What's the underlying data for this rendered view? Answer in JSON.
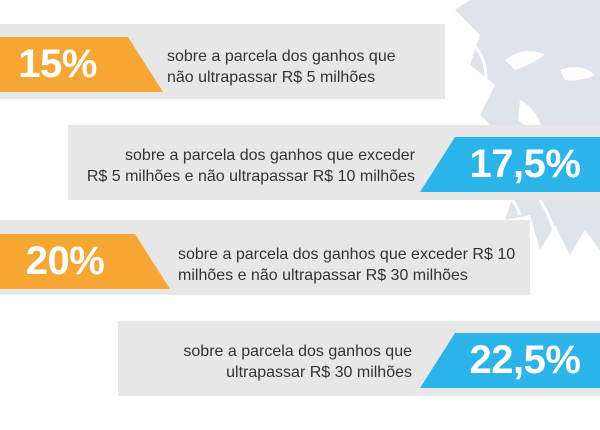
{
  "tiers": [
    {
      "rate": "15%",
      "text_line1": "sobre a parcela dos ganhos que",
      "text_line2": "não ultrapassar R$ 5 milhões",
      "color": "#f6a632"
    },
    {
      "rate": "17,5%",
      "text_line1": "sobre a parcela dos ganhos que exceder",
      "text_line2": "R$ 5 milhões e não ultrapassar R$ 10 milhões",
      "color": "#2ab4ea"
    },
    {
      "rate": "20%",
      "text_line1": "sobre a parcela dos ganhos que exceder R$ 10",
      "text_line2": "milhões e não ultrapassar R$ 30 milhões",
      "color": "#f6a632"
    },
    {
      "rate": "22,5%",
      "text_line1": "sobre a parcela dos ganhos que",
      "text_line2": "ultrapassar R$ 30 milhões",
      "color": "#2ab4ea"
    }
  ],
  "watermark": {
    "icon": "lion-head-icon",
    "color": "#d8dde6"
  }
}
